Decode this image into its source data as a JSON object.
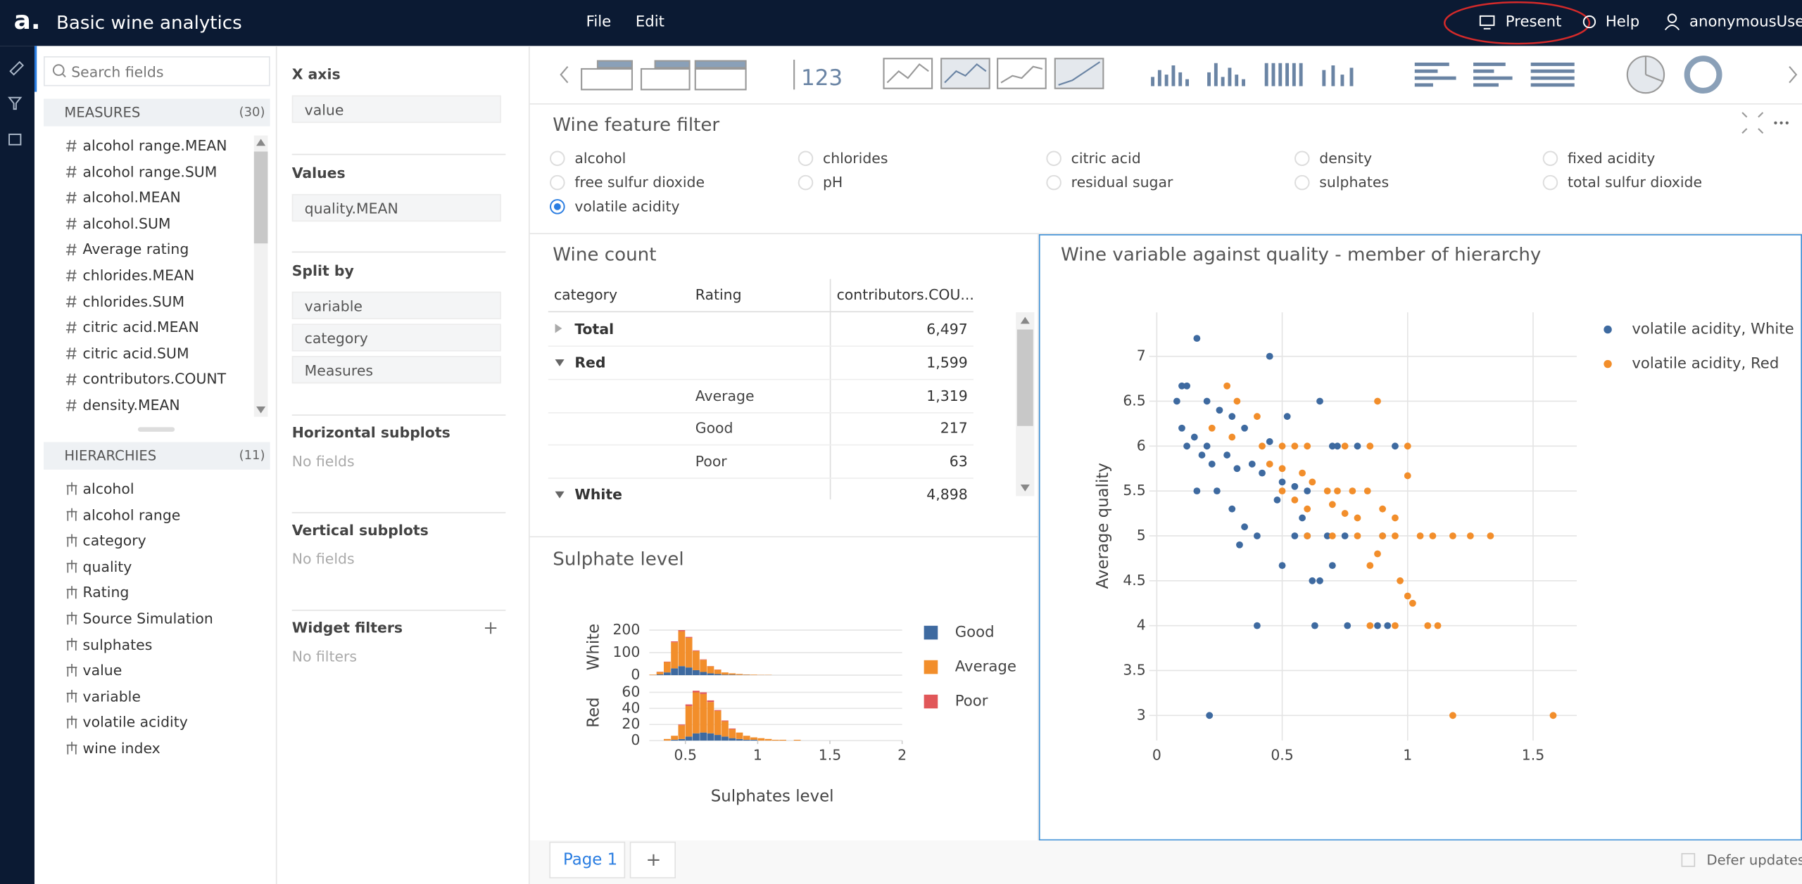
{
  "app": {
    "logo": "a.",
    "title": "Basic wine analytics",
    "menu": [
      "File",
      "Edit"
    ],
    "actions": [
      "Present",
      "Help",
      "anonymousUser"
    ]
  },
  "sidebar": {
    "search_placeholder": "Search fields",
    "measures_title": "MEASURES",
    "measures_count": "(30)",
    "measures": [
      "alcohol range.MEAN",
      "alcohol range.SUM",
      "alcohol.MEAN",
      "alcohol.SUM",
      "Average rating",
      "chlorides.MEAN",
      "chlorides.SUM",
      "citric acid.MEAN",
      "citric acid.SUM",
      "contributors.COUNT",
      "density.MEAN"
    ],
    "hierarchies_title": "HIERARCHIES",
    "hierarchies_count": "(11)",
    "hierarchies": [
      "alcohol",
      "alcohol range",
      "category",
      "quality",
      "Rating",
      "Source Simulation",
      "sulphates",
      "value",
      "variable",
      "volatile acidity",
      "wine index"
    ]
  },
  "config": {
    "sections": [
      {
        "title": "X axis",
        "fields": [
          "value"
        ]
      },
      {
        "title": "Values",
        "fields": [
          "quality.MEAN"
        ]
      },
      {
        "title": "Split by",
        "fields": [
          "variable",
          "category",
          "Measures"
        ]
      },
      {
        "title": "Horizontal subplots",
        "placeholder": "No fields"
      },
      {
        "title": "Vertical subplots",
        "placeholder": "No fields"
      },
      {
        "title": "Widget filters",
        "placeholder": "No filters"
      }
    ]
  },
  "toolbar": {
    "kpi_icon": "123"
  },
  "filter": {
    "title": "Wine feature filter",
    "options": [
      "alcohol",
      "chlorides",
      "citric acid",
      "density",
      "fixed acidity",
      "free sulfur dioxide",
      "pH",
      "residual sugar",
      "sulphates",
      "total sulfur dioxide",
      "volatile acidity"
    ],
    "selected_index": 10
  },
  "table": {
    "title": "Wine count",
    "columns": [
      "category",
      "Rating",
      "contributors.COU..."
    ],
    "rows": [
      {
        "category": "Total",
        "count": "6,497",
        "expanded": false
      },
      {
        "category": "Red",
        "count": "1,599",
        "expanded": true
      },
      {
        "rating": "Average",
        "count": "1,319"
      },
      {
        "rating": "Good",
        "count": "217"
      },
      {
        "rating": "Poor",
        "count": "63"
      },
      {
        "category": "White",
        "count": "4,898",
        "expanded": true
      }
    ]
  },
  "chart_data": [
    {
      "type": "scatter",
      "title": "Wine variable against quality - member of hierarchy",
      "ylabel": "Average quality",
      "xlim": [
        -0.03,
        1.674
      ],
      "ylim": [
        2.72,
        7.49
      ],
      "xticks": [
        0,
        0.5,
        1,
        1.5
      ],
      "yticks": [
        3,
        3.5,
        4,
        4.5,
        5,
        5.5,
        6,
        6.5,
        7
      ],
      "grid": true,
      "series": [
        {
          "name": "volatile acidity, White",
          "color": "#3e6aa0",
          "x": [
            0.16,
            0.45,
            0.08,
            0.1,
            0.12,
            0.2,
            0.25,
            0.3,
            0.35,
            0.52,
            0.65,
            0.1,
            0.15,
            0.2,
            0.12,
            0.18,
            0.22,
            0.28,
            0.32,
            0.38,
            0.42,
            0.45,
            0.5,
            0.55,
            0.6,
            0.7,
            0.72,
            0.8,
            0.95,
            0.16,
            0.24,
            0.3,
            0.35,
            0.33,
            0.4,
            0.55,
            0.6,
            0.68,
            0.75,
            0.9,
            0.5,
            0.62,
            0.65,
            0.7,
            0.4,
            0.63,
            0.76,
            0.88,
            0.92,
            0.21,
            0.58,
            0.48
          ],
          "y": [
            7.2,
            7,
            6.5,
            6.67,
            6.67,
            6.5,
            6.4,
            6.33,
            6.2,
            6.33,
            6.5,
            6.2,
            6.1,
            6,
            6,
            5.9,
            5.8,
            5.9,
            5.75,
            5.8,
            5.7,
            6.05,
            5.6,
            5.55,
            5.5,
            6,
            6,
            6,
            6,
            5.5,
            5.5,
            5.3,
            5.1,
            4.9,
            5,
            5,
            5,
            5,
            5,
            5,
            4.67,
            4.5,
            4.5,
            4.67,
            4,
            4,
            4,
            4,
            4,
            3,
            5.2,
            5.4
          ]
        },
        {
          "name": "volatile acidity, Red",
          "color": "#f28e2b",
          "x": [
            0.28,
            0.32,
            0.4,
            0.22,
            0.3,
            0.42,
            0.5,
            0.55,
            0.6,
            0.75,
            0.85,
            1.0,
            0.88,
            0.45,
            0.5,
            0.58,
            0.62,
            0.68,
            0.72,
            0.78,
            0.84,
            0.5,
            0.55,
            0.6,
            0.7,
            0.75,
            0.8,
            0.9,
            0.95,
            1.0,
            0.6,
            0.7,
            0.8,
            0.9,
            0.95,
            1.05,
            1.1,
            1.18,
            1.25,
            1.33,
            0.85,
            0.88,
            0.97,
            1.0,
            1.02,
            0.85,
            0.95,
            1.08,
            1.12,
            1.18,
            1.58
          ],
          "y": [
            6.67,
            6.5,
            6.33,
            6.2,
            6.1,
            6,
            6,
            6,
            6,
            6,
            6,
            6,
            6.5,
            5.8,
            5.75,
            5.7,
            5.6,
            5.5,
            5.5,
            5.5,
            5.5,
            5.5,
            5.4,
            5.3,
            5.35,
            5.25,
            5.2,
            5.3,
            5.2,
            5.67,
            5,
            5,
            5,
            5,
            5,
            5,
            5,
            5,
            5,
            5,
            4.67,
            4.8,
            4.5,
            4.33,
            4.25,
            4,
            4,
            4,
            4,
            3,
            3
          ]
        }
      ]
    },
    {
      "type": "histogram",
      "title": "Sulphate level",
      "xlabel": "Sulphates level",
      "xlim": [
        0.25,
        2
      ],
      "xticks": [
        0.5,
        1,
        1.5,
        2
      ],
      "grid": true,
      "bins": [
        0.25,
        0.3,
        0.35,
        0.4,
        0.45,
        0.5,
        0.55,
        0.6,
        0.65,
        0.7,
        0.75,
        0.8,
        0.85,
        0.9,
        0.95,
        1.0,
        1.05,
        1.1,
        1.15,
        1.2,
        1.25,
        1.3
      ],
      "series": [
        {
          "name": "Good",
          "color": "#3e6aa0"
        },
        {
          "name": "Average",
          "color": "#f28e2b"
        },
        {
          "name": "Poor",
          "color": "#e15759"
        }
      ],
      "panels": [
        {
          "ylabel": "White",
          "ylim": [
            0,
            250
          ],
          "yticks": [
            0,
            100,
            200
          ],
          "values": [
            [
              0,
              3,
              12,
              30,
              40,
              34,
              22,
              14,
              8,
              5,
              2,
              2,
              1,
              1,
              0,
              0,
              0,
              0,
              0,
              0,
              0
            ],
            [
              2,
              11,
              46,
              116,
              155,
              132,
              85,
              54,
              31,
              19,
              10,
              6,
              4,
              2,
              2,
              1,
              1,
              0,
              0,
              0,
              0
            ],
            [
              0,
              1,
              2,
              4,
              5,
              4,
              3,
              2,
              1,
              1,
              0,
              0,
              0,
              0,
              0,
              0,
              0,
              0,
              0,
              0,
              0
            ]
          ]
        },
        {
          "ylabel": "Red",
          "ylim": [
            0,
            70
          ],
          "yticks": [
            0,
            20,
            40,
            60
          ],
          "values": [
            [
              0,
              0,
              0,
              1,
              2,
              5,
              9,
              10,
              9,
              7,
              5,
              3,
              2,
              1,
              1,
              0,
              0,
              0,
              0,
              0,
              0
            ],
            [
              0,
              0,
              2,
              5,
              17,
              38,
              51,
              48,
              39,
              30,
              19,
              11,
              8,
              5,
              3,
              3,
              2,
              1,
              1,
              0,
              1
            ],
            [
              0,
              0,
              0,
              0,
              1,
              2,
              2,
              2,
              2,
              1,
              1,
              1,
              0,
              0,
              0,
              0,
              0,
              0,
              0,
              0,
              0
            ]
          ]
        }
      ]
    }
  ],
  "pages": {
    "tabs": [
      "Page 1"
    ],
    "add": "+"
  },
  "footer": {
    "defer_updates": "Defer updates"
  }
}
